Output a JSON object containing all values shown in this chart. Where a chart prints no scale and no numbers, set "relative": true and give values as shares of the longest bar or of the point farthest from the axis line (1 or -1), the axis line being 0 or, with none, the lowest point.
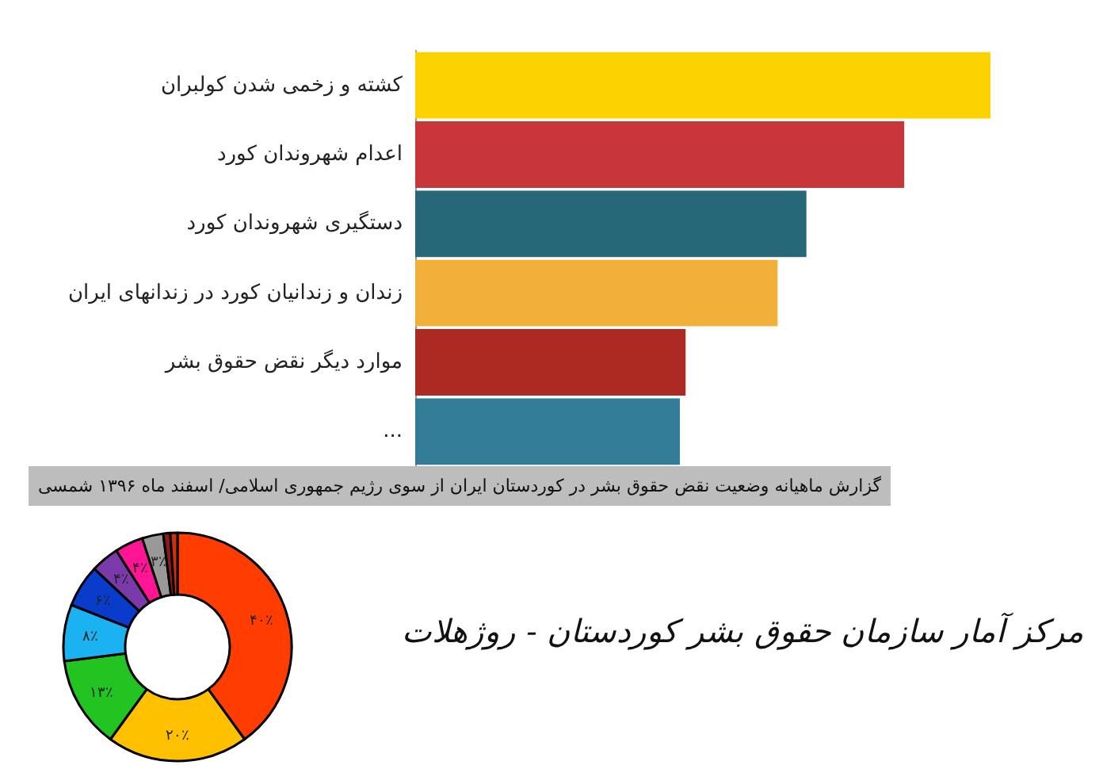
{
  "chart_data": [
    {
      "type": "bar",
      "orientation": "horizontal",
      "relative": true,
      "title": "گزارش ماهیانه وضعیت نقض حقوق بشر در کوردستان ایران از سوی رژیم جمهوری اسلامی/ اسفند ماه ۱۳۹۶ شمسی",
      "categories": [
        "کشته و زخمی شدن کولبران",
        "اعدام شهروندان کورد",
        "دستگیری شهروندان کورد",
        "زندان و زندانیان کورد در زندانهای ایران",
        "موارد دیگر نقض حقوق بشر",
        "..."
      ],
      "values": [
        1,
        0.85,
        0.68,
        0.63,
        0.47,
        0.46
      ],
      "colors": [
        "#fcd200",
        "#c9363a",
        "#276878",
        "#f0b03a",
        "#ad2a22",
        "#327c98"
      ]
    },
    {
      "type": "donut",
      "annotations": [
        "مرکز آمار سازمان حقوق بشر کوردستان - روژهلات"
      ],
      "categories": [
        null,
        null,
        null,
        null,
        null,
        null,
        null,
        null,
        null,
        null
      ],
      "values": [
        40,
        20,
        13,
        8,
        6,
        4,
        4,
        3,
        1,
        1
      ],
      "value_labels": [
        "۴۰٪",
        "۲۰٪",
        "۱۳٪",
        "۸٪",
        "۶٪",
        "۴٪",
        "۴٪",
        "۳٪",
        null,
        null
      ],
      "colors": [
        "#ff3d00",
        "#ffc000",
        "#22c422",
        "#1ab2f0",
        "#0a3ccc",
        "#7a3aaa",
        "#ff1493",
        "#999999",
        "#8b1a1a",
        "#cc3300"
      ]
    }
  ]
}
